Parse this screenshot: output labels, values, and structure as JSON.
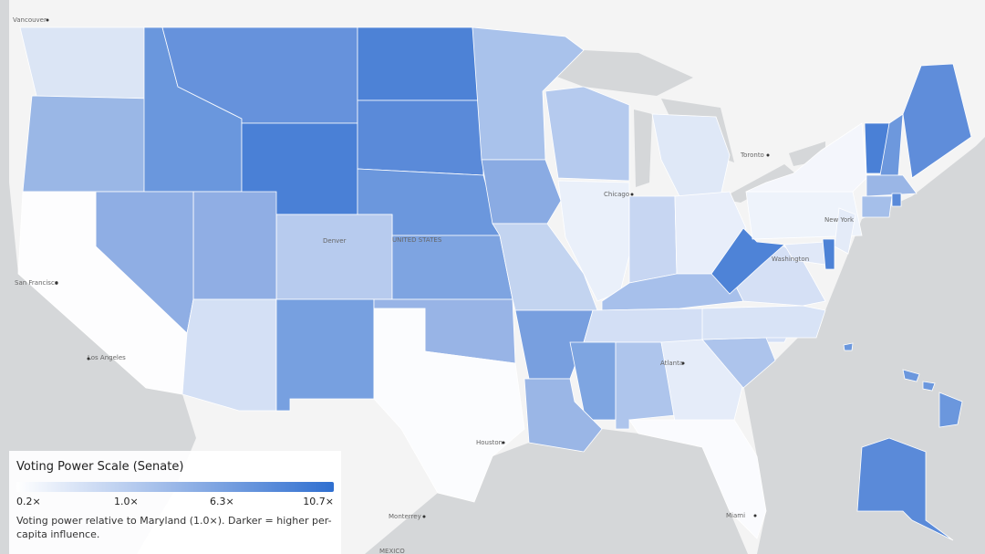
{
  "map_labels": [
    "Vancouver",
    "San Francisco",
    "Los Angeles",
    "Denver",
    "UNITED STATES",
    "Chicago",
    "Toronto",
    "New York",
    "Washington",
    "Atlanta",
    "Houston",
    "Miami",
    "Monterrey",
    "MEXICO"
  ],
  "legend": {
    "title": "Voting Power Scale (Senate)",
    "ticks": [
      "0.2×",
      "1.0×",
      "6.3×",
      "10.7×"
    ],
    "description": "Voting power relative to Maryland (1.0×). Darker = higher per-capita influence."
  }
}
